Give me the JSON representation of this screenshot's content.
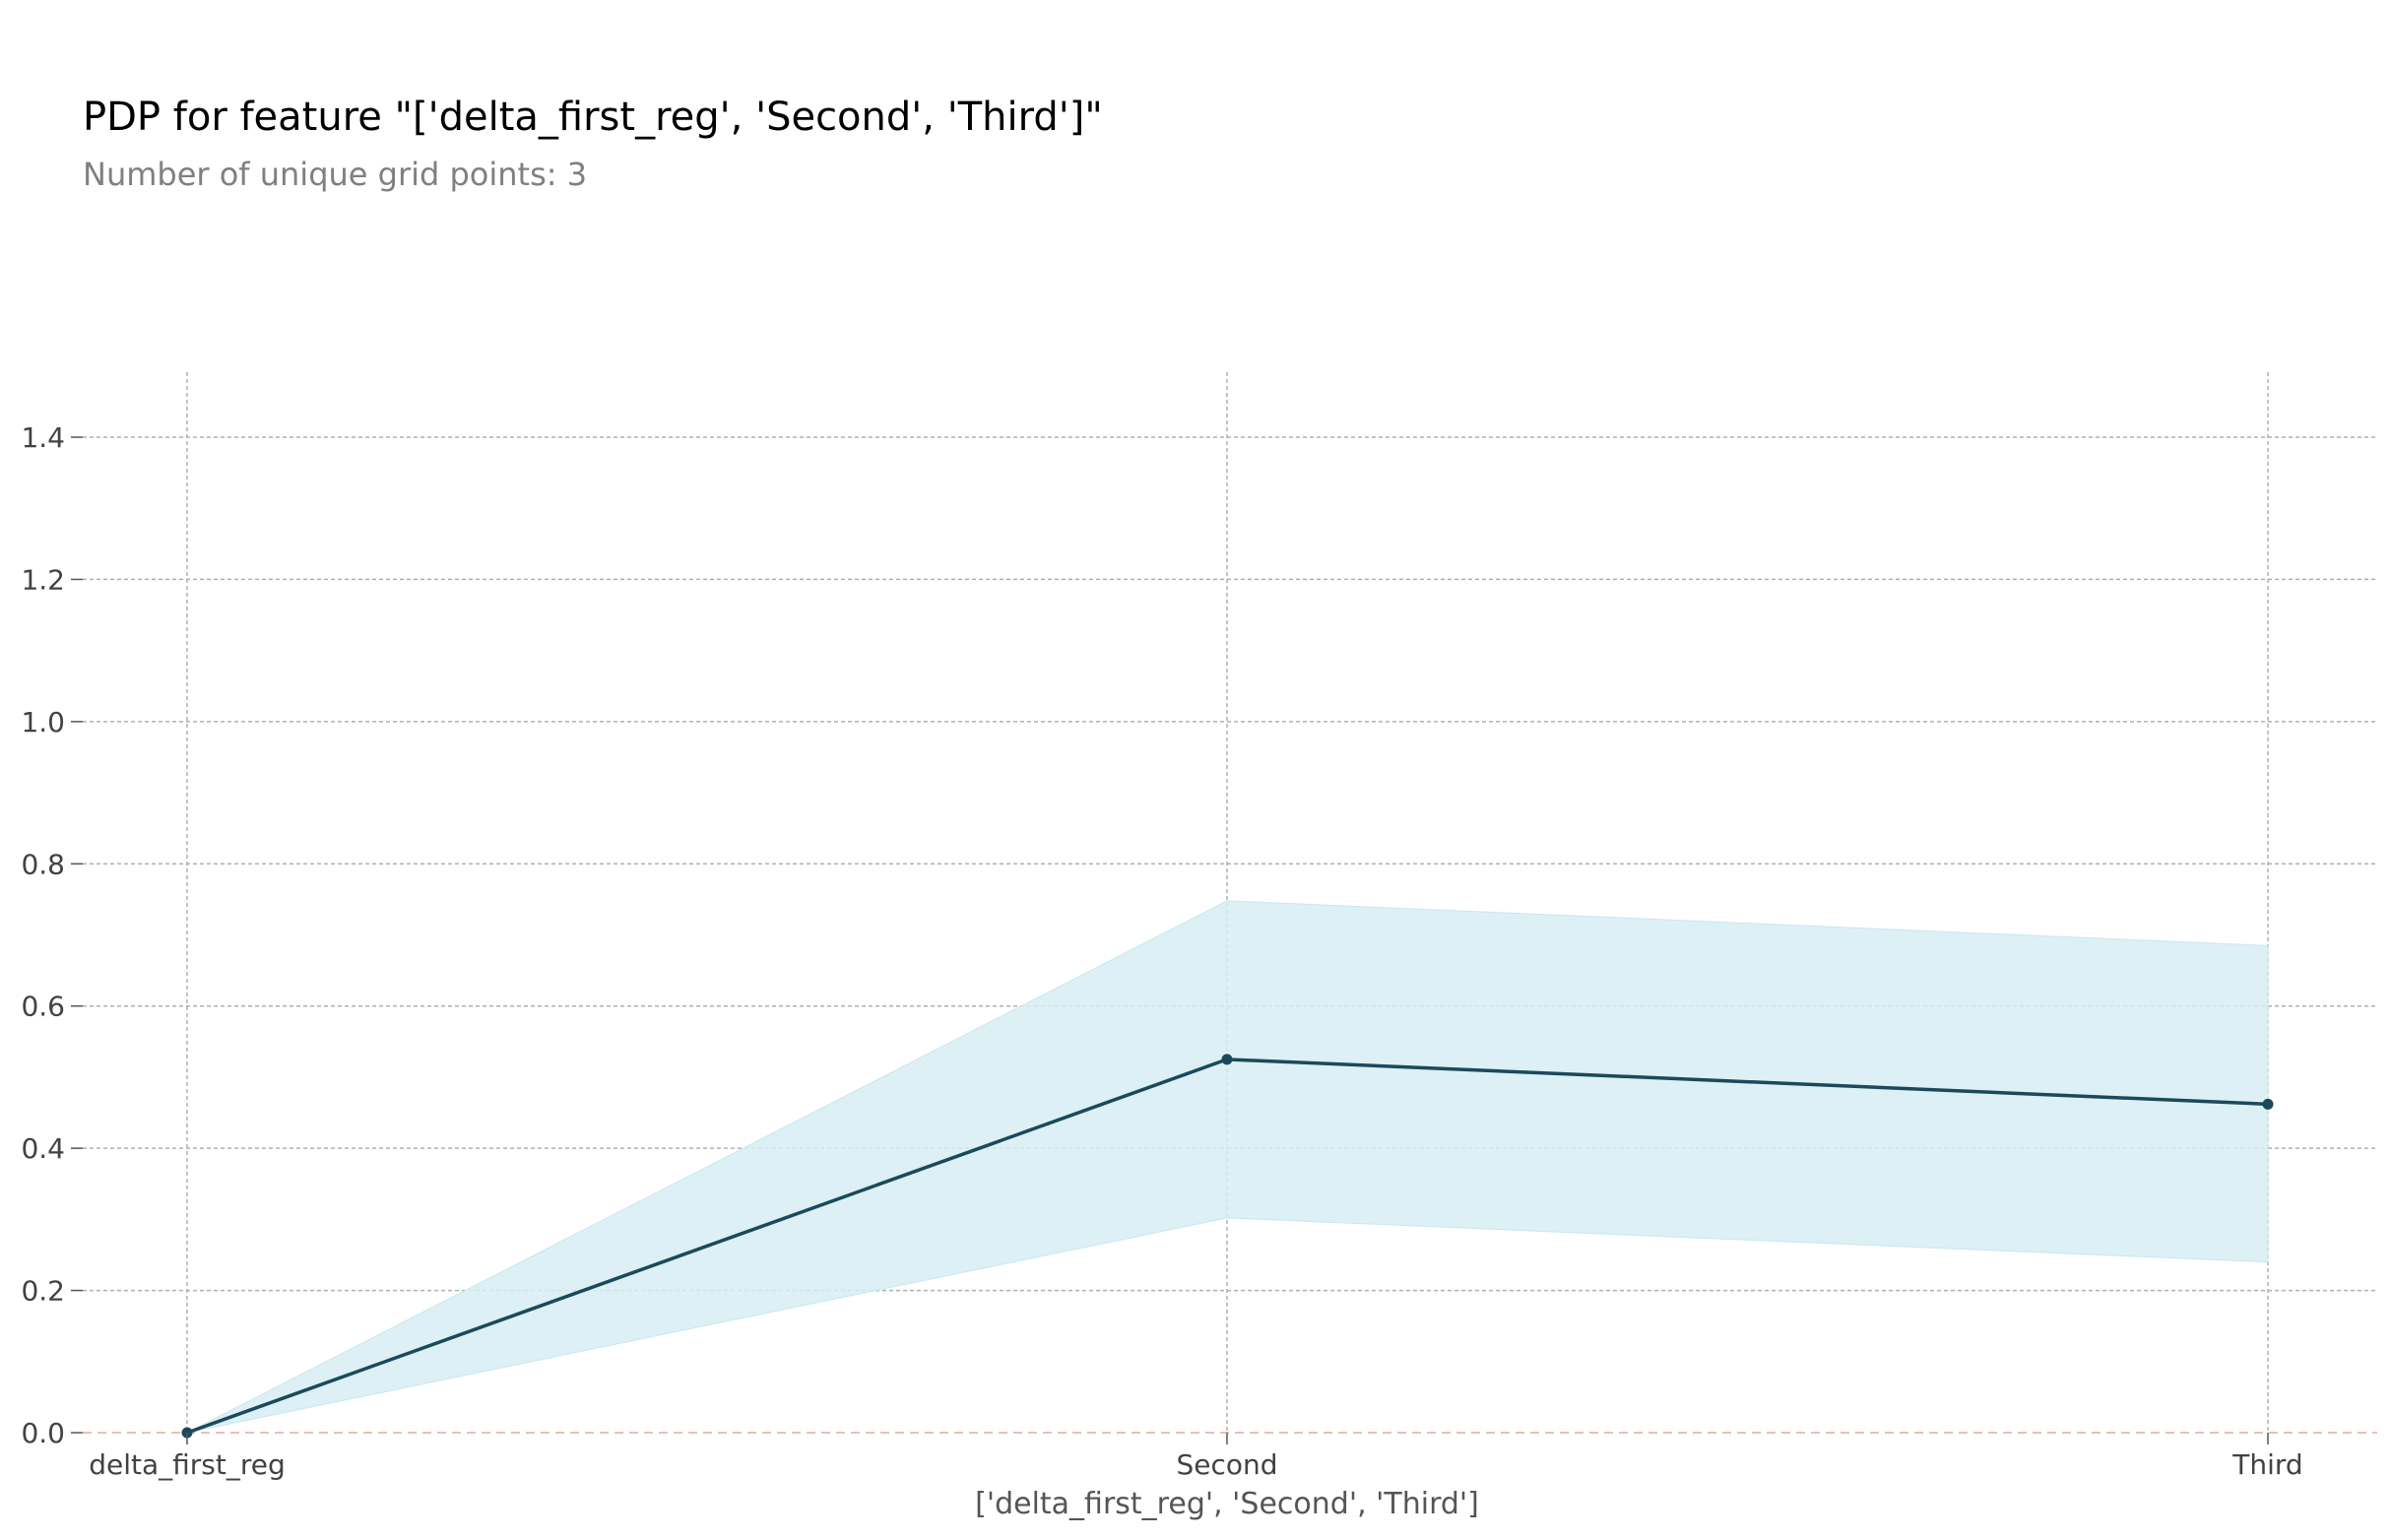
{
  "chart_data": {
    "type": "line",
    "title": "PDP for feature \"['delta_first_reg', 'Second', 'Third']\"",
    "subtitle": "Number of unique grid points: 3",
    "xlabel": "['delta_first_reg', 'Second', 'Third']",
    "ylabel": "",
    "categories": [
      "delta_first_reg",
      "Second",
      "Third"
    ],
    "series": [
      {
        "values": [
          0.0,
          0.525,
          0.462
        ],
        "upper": [
          0.0,
          0.748,
          0.685
        ],
        "lower": [
          0.0,
          0.302,
          0.24
        ]
      }
    ],
    "ylim": [
      0.0,
      1.5
    ],
    "yticks": [
      0.0,
      0.2,
      0.4,
      0.6,
      0.8,
      1.0,
      1.2,
      1.4
    ],
    "ytick_labels": [
      "0.0",
      "0.2",
      "0.4",
      "0.6",
      "0.8",
      "1.0",
      "1.2",
      "1.4"
    ],
    "baseline": 0.0,
    "grid": true,
    "colors": {
      "line": "#1a4a5a",
      "band": "#d6edf5",
      "grid": "#b0b0b0",
      "baseline": "#e8a7a0",
      "tick_text": "#424242",
      "xlabel_text": "#555555"
    }
  }
}
